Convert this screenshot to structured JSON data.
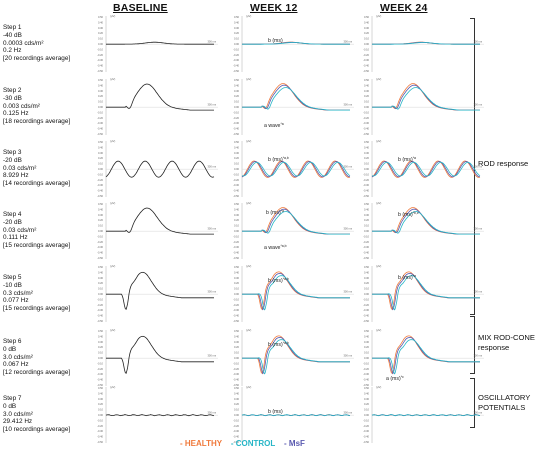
{
  "headers": [
    "BASELINE",
    "WEEK 12",
    "WEEK 24"
  ],
  "steps": [
    {
      "lines": [
        "Step 1",
        "-40 dB",
        "0.0003 cds/m²",
        "0.2 Hz",
        "[20 recordings average]"
      ]
    },
    {
      "lines": [
        "Step 2",
        "-30 dB",
        "0.003 cds/m²",
        "0.125 Hz",
        "[18 recordings average]"
      ]
    },
    {
      "lines": [
        "Step 3",
        "-20 dB",
        "0.03 cds/m²",
        "8.929 Hz",
        "[14 recordings average]"
      ]
    },
    {
      "lines": [
        "Step 4",
        "-20 dB",
        "0.03 cds/m²",
        "0.111 Hz",
        "[15 recordings average]"
      ]
    },
    {
      "lines": [
        "Step 5",
        "-10 dB",
        "0.3 cds/m²",
        "0.077 Hz",
        "[15 recordings average]"
      ]
    },
    {
      "lines": [
        "Step 6",
        "0 dB",
        "3.0 cds/m²",
        "0.067 Hz",
        "[12 recordings average]"
      ]
    },
    {
      "lines": [
        "Step 7",
        "0 dB",
        "3.0 cds/m²",
        "29.412 Hz",
        "[10 recordings average]"
      ]
    }
  ],
  "groups": {
    "rod": "ROD response",
    "mix": [
      "MIX ROD-CONE",
      "response"
    ],
    "osc": [
      "OSCILLATORY",
      "POTENTIALS"
    ]
  },
  "legend": {
    "healthy": "- HEALTHY",
    "control": "- CONTROL",
    "msf": "- MsF"
  },
  "colors": {
    "healthy": "#f07a3c",
    "control": "#26b5c6",
    "msf": "#5a5ab0",
    "baseline": "#222222"
  },
  "chart_data": {
    "type": "line",
    "unit_label": "(µV)",
    "time_label": "300 ms",
    "yticks": [
      "0.50",
      "0.40",
      "0.30",
      "0.20",
      "0.10",
      "0.00",
      "-0.10",
      "-0.20",
      "-0.30",
      "-0.40",
      "-0.50"
    ],
    "panels": [
      {
        "step": 1,
        "kind": "flat",
        "amp": 0.08,
        "annotations": {
          "week12": "b (ms)"
        }
      },
      {
        "step": 2,
        "kind": "rod",
        "amp": 1.0,
        "annotations": {
          "week12": "a wave",
          "week12_sup": "*a"
        }
      },
      {
        "step": 3,
        "kind": "wave",
        "amp": 0.6,
        "annotations": {
          "week12": "b (ms)",
          "week12_sup": "*a,b",
          "week24": "b (ms)",
          "week24_sup": "*a"
        }
      },
      {
        "step": 4,
        "kind": "rod",
        "amp": 1.0,
        "annotations": {
          "week12": "b (ms)",
          "week12_sup": "*a",
          "week12_a": "a wave",
          "week12_a_sup": "*a,b",
          "week24": "b (ms)",
          "week24_sup": "*b,c"
        }
      },
      {
        "step": 5,
        "kind": "mix",
        "amp": 1.0,
        "annotations": {
          "week12": "b (ms)",
          "week12_sup": "*a,b",
          "week24": "b (ms)",
          "week24_sup": "*a"
        }
      },
      {
        "step": 6,
        "kind": "mix",
        "amp": 1.0,
        "annotations": {
          "week12": "b (ms)",
          "week12_sup": "*a,b",
          "week24": "a (ms)",
          "week24_sup": "*c"
        }
      },
      {
        "step": 7,
        "kind": "osc",
        "amp": 0.06,
        "annotations": {
          "week12": "b (ms)"
        }
      }
    ]
  }
}
